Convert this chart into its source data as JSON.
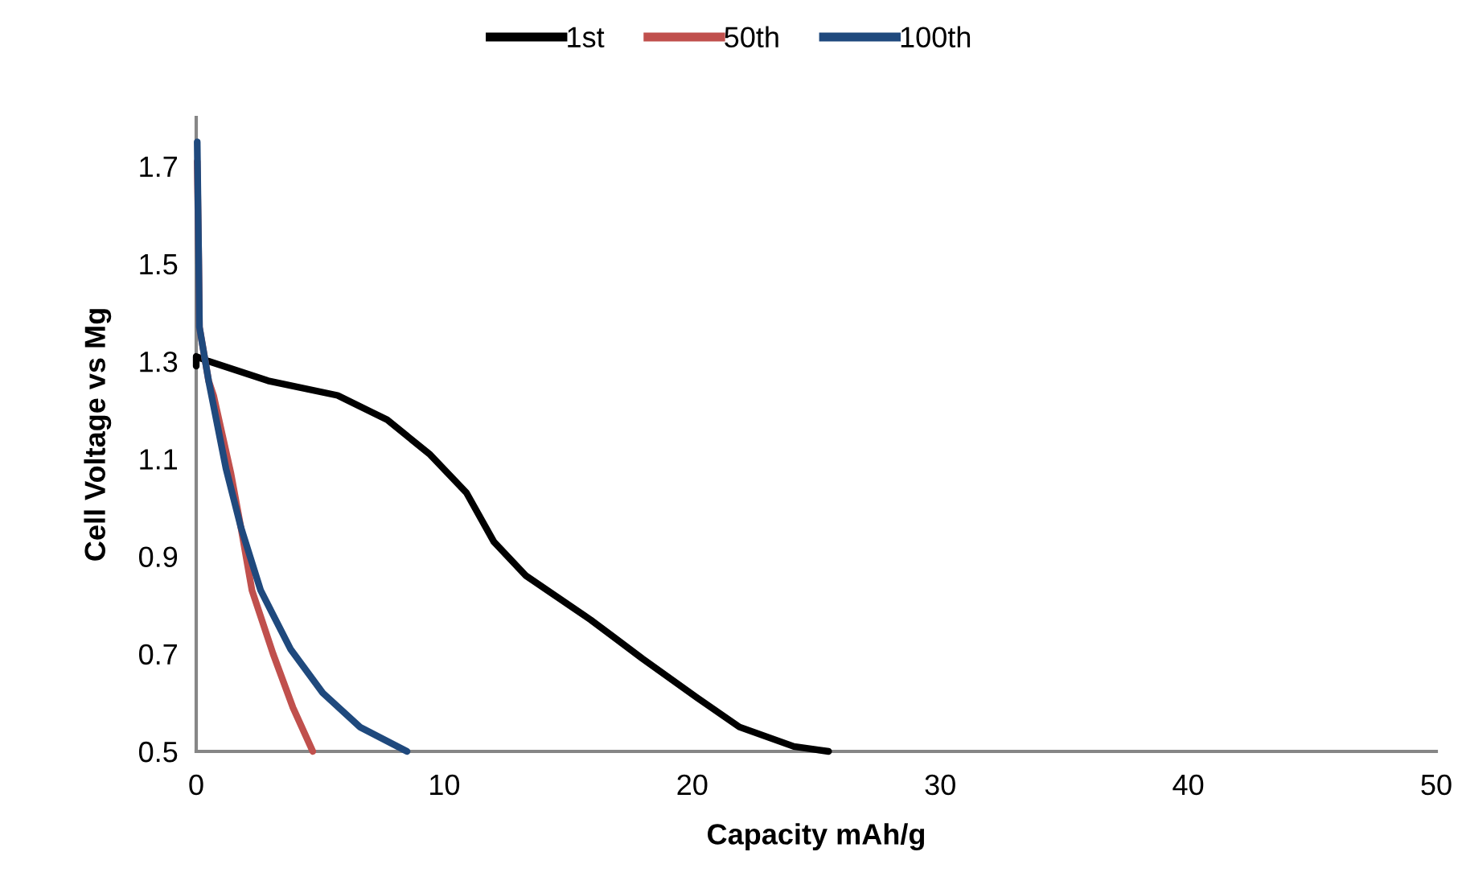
{
  "chart_data": {
    "type": "line",
    "xlabel": "Capacity mAh/g",
    "ylabel": "Cell Voltage vs Mg",
    "xlim": [
      0,
      50
    ],
    "xticks": [
      0,
      10,
      20,
      30,
      40,
      50
    ],
    "ylim": [
      0.5,
      1.8
    ],
    "yticks": [
      0.5,
      0.7,
      0.9,
      1.1,
      1.3,
      1.5,
      1.7
    ],
    "grid": false,
    "legend": "top",
    "marker": "none",
    "line_style": "solid",
    "series": [
      {
        "name": "1st",
        "color": "#000000",
        "x": [
          0,
          0,
          0.5,
          2.9,
          5.7,
          7.7,
          9.4,
          10.9,
          12.0,
          13.3,
          15.9,
          18.0,
          20.2,
          21.9,
          24.1,
          25.5
        ],
        "values": [
          1.29,
          1.31,
          1.3,
          1.26,
          1.23,
          1.18,
          1.11,
          1.03,
          0.93,
          0.86,
          0.77,
          0.69,
          0.61,
          0.55,
          0.51,
          0.5
        ]
      },
      {
        "name": "50th",
        "color": "#c0504d",
        "x": [
          0.04,
          0.1,
          0.13,
          0.5,
          0.7,
          1.4,
          1.8,
          2.25,
          3.1,
          3.9,
          4.7
        ],
        "values": [
          1.71,
          1.51,
          1.37,
          1.26,
          1.23,
          1.07,
          0.96,
          0.83,
          0.7,
          0.59,
          0.5
        ]
      },
      {
        "name": "100th",
        "color": "#1f497d",
        "x": [
          0.04,
          0.1,
          0.13,
          0.5,
          1.2,
          1.8,
          2.6,
          3.8,
          5.1,
          6.6,
          8.5
        ],
        "values": [
          1.75,
          1.51,
          1.37,
          1.26,
          1.08,
          0.96,
          0.83,
          0.71,
          0.62,
          0.55,
          0.5
        ]
      }
    ]
  }
}
